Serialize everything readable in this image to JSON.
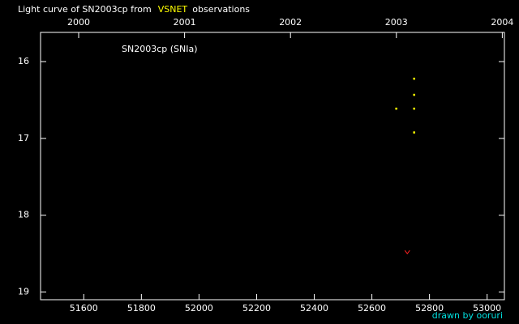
{
  "chart_data": {
    "type": "scatter",
    "title_parts": [
      "Light curve of SN2003cp from",
      "VSNET",
      "observations"
    ],
    "title_colors": [
      "#ffffff",
      "#ffff00",
      "#ffffff"
    ],
    "annotation": "SN2003cp (SNIa)",
    "credit": "drawn by ooruri",
    "credit_color": "#00e0e0",
    "xlim": [
      51450,
      53060
    ],
    "xticks": [
      51600,
      51800,
      52000,
      52200,
      52400,
      52600,
      52800,
      53000
    ],
    "x2lim": [
      1999.64,
      2004.02
    ],
    "x2ticks": [
      2000,
      2001,
      2002,
      2003,
      2004
    ],
    "ylim": [
      15.62,
      19.1
    ],
    "yticks": [
      16,
      17,
      18,
      19
    ],
    "y_inverted": true,
    "series": [
      {
        "color": "#ffff00",
        "marker": "dot",
        "x": [
          52684,
          52746,
          52746,
          52746,
          52746
        ],
        "values": [
          16.61,
          16.22,
          16.43,
          16.61,
          16.92
        ]
      },
      {
        "color": "#ff2020",
        "marker": "v",
        "x": [
          52723
        ],
        "values": [
          18.48
        ]
      }
    ]
  }
}
